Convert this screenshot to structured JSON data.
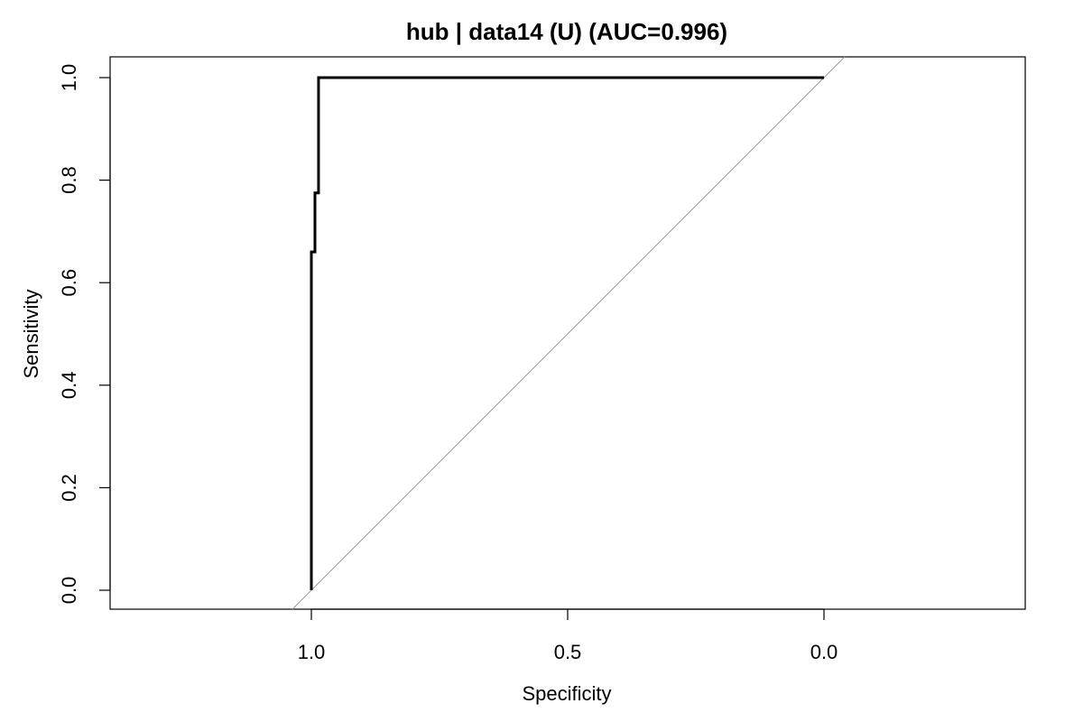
{
  "chart_data": {
    "type": "line",
    "title": "hub | data14 (U) (AUC=0.996)",
    "xlabel": "Specificity",
    "ylabel": "Sensitivity",
    "xlim": [
      1.3953,
      -0.3953
    ],
    "ylim": [
      0,
      1
    ],
    "x_axis_reversed": true,
    "grid": false,
    "x_ticks": [
      1.0,
      0.5,
      0.0
    ],
    "x_tick_labels": [
      "1.0",
      "0.5",
      "0.0"
    ],
    "y_ticks": [
      0.0,
      0.2,
      0.4,
      0.6,
      0.8,
      1.0
    ],
    "y_tick_labels": [
      "0.0",
      "0.2",
      "0.4",
      "0.6",
      "0.8",
      "1.0"
    ],
    "reference_line": {
      "description": "diagonal",
      "from": [
        1,
        0
      ],
      "to": [
        0,
        1
      ]
    },
    "series": [
      {
        "color": "#000000",
        "points": [
          {
            "specificity": 1.0,
            "sensitivity": 0.0
          },
          {
            "specificity": 1.0,
            "sensitivity": 0.66
          },
          {
            "specificity": 0.993,
            "sensitivity": 0.66
          },
          {
            "specificity": 0.993,
            "sensitivity": 0.775
          },
          {
            "specificity": 0.986,
            "sensitivity": 0.775
          },
          {
            "specificity": 0.986,
            "sensitivity": 1.0
          },
          {
            "specificity": 0.0,
            "sensitivity": 1.0
          }
        ]
      }
    ]
  }
}
